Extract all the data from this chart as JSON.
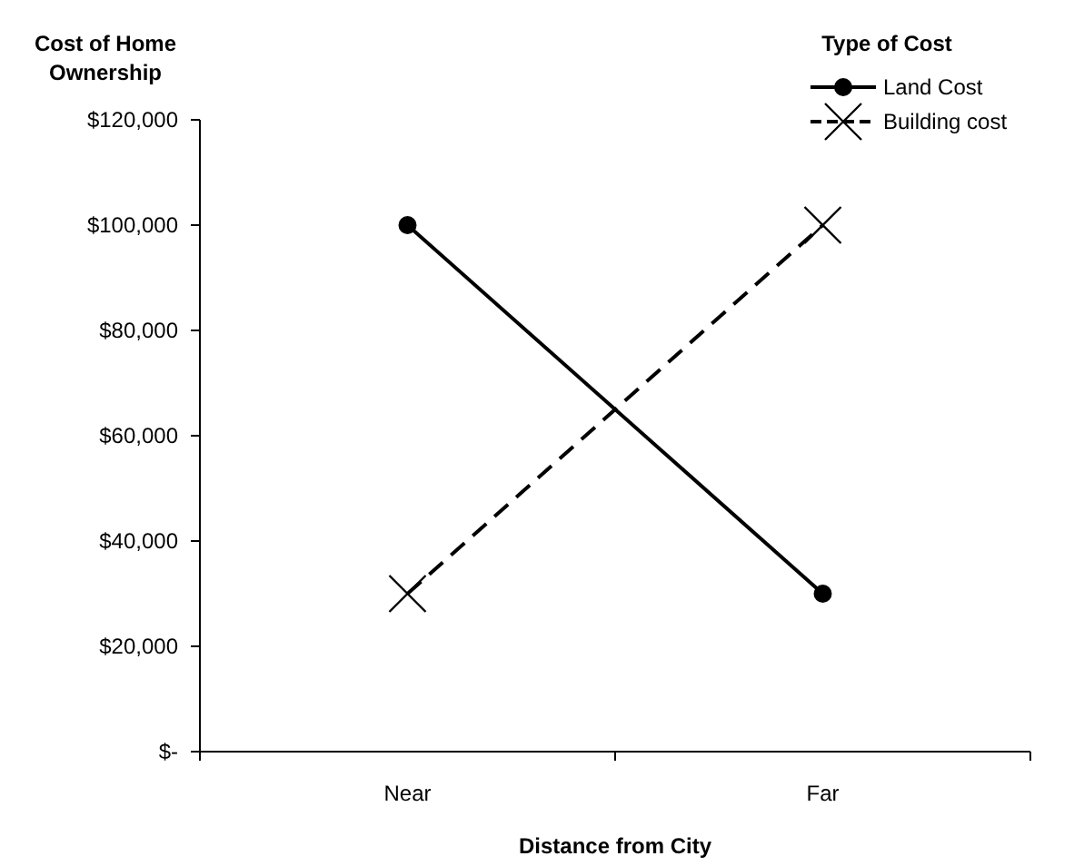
{
  "chart_data": {
    "type": "line",
    "title": "Cost of Home Ownership",
    "xlabel": "Distance from City",
    "legend_title": "Type of Cost",
    "legend": "top right",
    "categories": [
      "Near",
      "Far"
    ],
    "series": [
      {
        "name": "Land Cost",
        "color": "#000000",
        "values": [
          100000,
          30000
        ],
        "marker": "circle",
        "line_style": "solid"
      },
      {
        "name": "Building cost",
        "color": "#000000",
        "values": [
          30000,
          100000
        ],
        "marker": "cross",
        "line_style": "dashed"
      }
    ],
    "ylim": [
      0,
      120000
    ],
    "yticks": [
      {
        "value": 0,
        "label": "$-"
      },
      {
        "value": 20000,
        "label": "$20,000"
      },
      {
        "value": 40000,
        "label": "$40,000"
      },
      {
        "value": 60000,
        "label": "$60,000"
      },
      {
        "value": 80000,
        "label": "$80,000"
      },
      {
        "value": 100000,
        "label": "$100,000"
      },
      {
        "value": 120000,
        "label": "$120,000"
      }
    ],
    "grid": false
  }
}
